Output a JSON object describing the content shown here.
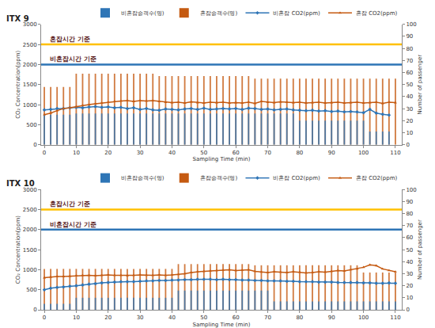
{
  "chart_data": [
    {
      "type": "combo",
      "title": "ITX 9",
      "xlabel": "Sampling Time (min)",
      "ylabel": "CO₂ Concentration(ppm)",
      "y2label": "Number of passenger",
      "x": [
        0,
        2,
        4,
        6,
        8,
        10,
        12,
        14,
        16,
        18,
        20,
        22,
        24,
        26,
        28,
        30,
        32,
        34,
        36,
        38,
        40,
        42,
        44,
        46,
        48,
        50,
        52,
        54,
        56,
        58,
        60,
        62,
        64,
        66,
        68,
        70,
        72,
        74,
        76,
        78,
        80,
        82,
        84,
        86,
        88,
        90,
        92,
        94,
        96,
        98,
        100,
        102,
        104,
        106,
        108,
        110
      ],
      "xlim": [
        -1,
        112
      ],
      "xticks": [
        0,
        10,
        20,
        30,
        40,
        50,
        60,
        70,
        80,
        90,
        100,
        110
      ],
      "ylim": [
        0,
        3000
      ],
      "yticks": [
        0,
        500,
        1000,
        1500,
        2000,
        2500,
        3000
      ],
      "y2lim": [
        0,
        100
      ],
      "y2ticks": [
        0,
        10,
        20,
        30,
        40,
        50,
        60,
        70,
        80,
        90,
        100
      ],
      "grid": false,
      "legend": "upper right",
      "reference_lines": [
        {
          "value": 2500,
          "label": "혼잡시간 기준",
          "color": "#FFC000"
        },
        {
          "value": 2000,
          "label": "비혼잡시간 기준",
          "color": "#2E75B6"
        }
      ],
      "series": [
        {
          "name": "비혼잡승객수(명)",
          "type": "bar",
          "axis": "y2",
          "color": "#2E75B6",
          "values": [
            25,
            25,
            25,
            25,
            25,
            26,
            26,
            26,
            26,
            26,
            26,
            26,
            26,
            26,
            26,
            26,
            26,
            26,
            26,
            26,
            26,
            26,
            26,
            26,
            26,
            26,
            26,
            26,
            26,
            26,
            26,
            26,
            26,
            26,
            26,
            26,
            26,
            26,
            26,
            26,
            20,
            20,
            20,
            20,
            20,
            20,
            20,
            20,
            20,
            20,
            20,
            11,
            11,
            11,
            11,
            null
          ]
        },
        {
          "name": "혼잡승객수(명)",
          "type": "bar",
          "axis": "y2",
          "color": "#C55A11",
          "values": [
            48,
            48,
            48,
            48,
            48,
            59,
            59,
            59,
            59,
            59,
            59,
            59,
            59,
            59,
            59,
            59,
            59,
            59,
            57,
            57,
            57,
            57,
            57,
            57,
            57,
            57,
            57,
            57,
            57,
            57,
            57,
            57,
            57,
            55,
            55,
            55,
            55,
            55,
            55,
            55,
            55,
            55,
            55,
            55,
            55,
            55,
            55,
            55,
            55,
            55,
            55,
            55,
            55,
            55,
            55,
            55
          ]
        },
        {
          "name": "비혼잡 CO2(ppm)",
          "type": "line",
          "color": "#2E75B6",
          "marker": "diamond",
          "values": [
            870,
            880,
            900,
            900,
            920,
            930,
            920,
            940,
            950,
            930,
            940,
            920,
            930,
            900,
            920,
            880,
            900,
            870,
            860,
            890,
            880,
            870,
            890,
            900,
            880,
            910,
            880,
            890,
            900,
            890,
            900,
            880,
            910,
            900,
            880,
            890,
            870,
            880,
            890,
            870,
            860,
            850,
            860,
            840,
            850,
            830,
            840,
            820,
            830,
            820,
            800,
            880,
            790,
            760,
            740,
            null
          ]
        },
        {
          "name": "혼잡 CO2(ppm)",
          "type": "line",
          "color": "#C55A11",
          "marker": "triangle-up",
          "values": [
            750,
            790,
            850,
            900,
            920,
            950,
            980,
            1000,
            1020,
            1040,
            1060,
            1080,
            1090,
            1100,
            1080,
            1100,
            1090,
            1100,
            1080,
            1060,
            1050,
            1060,
            1040,
            1070,
            1050,
            1040,
            1060,
            1050,
            1060,
            1040,
            1050,
            1040,
            1060,
            1030,
            1080,
            1060,
            1050,
            1070,
            1060,
            1050,
            1060,
            1040,
            1050,
            1060,
            1040,
            1050,
            1060,
            1040,
            1050,
            1060,
            1040,
            1050,
            1060,
            1030,
            1060,
            1050
          ]
        }
      ]
    },
    {
      "type": "combo",
      "title": "ITX 10",
      "xlabel": "Sampling Time (min)",
      "ylabel": "CO₂ Concentration(ppm)",
      "y2label": "Number of passenger",
      "x": [
        0,
        2,
        4,
        6,
        8,
        10,
        12,
        14,
        16,
        18,
        20,
        22,
        24,
        26,
        28,
        30,
        32,
        34,
        36,
        38,
        40,
        42,
        44,
        46,
        48,
        50,
        52,
        54,
        56,
        58,
        60,
        62,
        64,
        66,
        68,
        70,
        72,
        74,
        76,
        78,
        80,
        82,
        84,
        86,
        88,
        90,
        92,
        94,
        96,
        98,
        100,
        102,
        104,
        106,
        108,
        110
      ],
      "xlim": [
        -1,
        112
      ],
      "xticks": [
        0,
        10,
        20,
        30,
        40,
        50,
        60,
        70,
        80,
        90,
        100,
        110
      ],
      "ylim": [
        0,
        3000
      ],
      "yticks": [
        0,
        500,
        1000,
        1500,
        2000,
        2500,
        3000
      ],
      "y2lim": [
        0,
        100
      ],
      "y2ticks": [
        0,
        10,
        20,
        30,
        40,
        50,
        60,
        70,
        80,
        90,
        100
      ],
      "grid": false,
      "legend": "upper right",
      "reference_lines": [
        {
          "value": 2500,
          "label": "혼잡시간 기준",
          "color": "#FFC000"
        },
        {
          "value": 2000,
          "label": "비혼잡시간 기준",
          "color": "#2E75B6"
        }
      ],
      "series": [
        {
          "name": "비혼잡승객수(명)",
          "type": "bar",
          "axis": "y2",
          "color": "#2E75B6",
          "values": [
            5,
            5,
            5,
            5,
            5,
            10,
            10,
            10,
            10,
            10,
            10,
            10,
            10,
            10,
            10,
            10,
            10,
            10,
            10,
            10,
            10,
            16,
            16,
            16,
            16,
            16,
            16,
            16,
            16,
            16,
            16,
            16,
            16,
            16,
            16,
            16,
            7,
            7,
            7,
            7,
            7,
            7,
            7,
            7,
            7,
            7,
            7,
            7,
            7,
            7,
            7,
            7,
            7,
            7,
            7,
            7
          ]
        },
        {
          "name": "혼잡승객수(명)",
          "type": "bar",
          "axis": "y2",
          "color": "#C55A11",
          "values": [
            34,
            34,
            34,
            34,
            34,
            34,
            34,
            34,
            34,
            34,
            34,
            34,
            34,
            34,
            34,
            34,
            34,
            34,
            34,
            34,
            34,
            38,
            38,
            38,
            38,
            38,
            38,
            38,
            38,
            38,
            38,
            38,
            38,
            37,
            37,
            37,
            37,
            37,
            37,
            37,
            37,
            37,
            37,
            37,
            37,
            37,
            37,
            37,
            37,
            37,
            31,
            31,
            31,
            31,
            31,
            31
          ]
        },
        {
          "name": "비혼잡 CO2(ppm)",
          "type": "line",
          "color": "#2E75B6",
          "marker": "diamond",
          "values": [
            500,
            540,
            560,
            570,
            590,
            600,
            620,
            640,
            650,
            670,
            680,
            690,
            700,
            700,
            700,
            710,
            720,
            720,
            730,
            730,
            740,
            740,
            750,
            750,
            760,
            760,
            760,
            750,
            760,
            750,
            750,
            740,
            740,
            730,
            730,
            720,
            720,
            720,
            710,
            710,
            700,
            700,
            700,
            690,
            690,
            690,
            680,
            680,
            680,
            680,
            670,
            670,
            660,
            660,
            670,
            660
          ]
        },
        {
          "name": "혼잡 CO2(ppm)",
          "type": "line",
          "color": "#C55A11",
          "marker": "triangle-up",
          "values": [
            800,
            820,
            830,
            830,
            840,
            850,
            860,
            860,
            850,
            860,
            870,
            860,
            860,
            850,
            860,
            870,
            860,
            860,
            870,
            860,
            870,
            880,
            900,
            930,
            950,
            960,
            970,
            980,
            990,
            1000,
            980,
            990,
            1000,
            960,
            940,
            930,
            950,
            940,
            930,
            950,
            940,
            920,
            930,
            950,
            940,
            960,
            980,
            970,
            1000,
            1020,
            1060,
            1120,
            1100,
            1020,
            980,
            950
          ]
        }
      ]
    }
  ]
}
